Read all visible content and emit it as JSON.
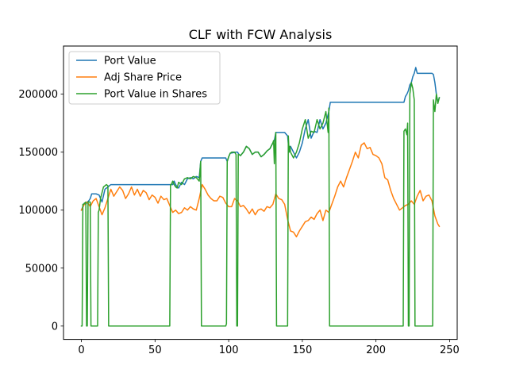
{
  "chart_data": {
    "type": "line",
    "title": "CLF with FCW Analysis",
    "xlabel": "",
    "ylabel": "",
    "xlim": [
      -12.15,
      255.15
    ],
    "ylim": [
      -11500,
      241500
    ],
    "xticks": [
      0,
      50,
      100,
      150,
      200,
      250
    ],
    "xtick_labels": [
      "0",
      "50",
      "100",
      "150",
      "200",
      "250"
    ],
    "yticks": [
      0,
      50000,
      100000,
      150000,
      200000
    ],
    "ytick_labels": [
      "0",
      "50000",
      "100000",
      "150000",
      "200000"
    ],
    "grid": false,
    "legend": {
      "placement": "upper-left"
    },
    "series": [
      {
        "name": "Port Value",
        "color": "#1f77b4",
        "x": [
          0,
          1,
          2,
          3,
          4,
          5,
          6,
          7,
          8,
          10,
          12,
          14,
          16,
          18,
          20,
          25,
          30,
          40,
          50,
          60,
          61,
          62,
          63,
          64,
          65,
          66,
          68,
          70,
          72,
          74,
          76,
          78,
          80,
          81,
          82,
          83,
          90,
          98,
          99,
          100,
          101,
          105,
          106,
          107,
          108,
          110,
          112,
          114,
          116,
          118,
          120,
          122,
          124,
          126,
          128,
          130,
          131,
          132,
          137,
          138,
          140,
          141,
          142,
          144,
          146,
          148,
          150,
          152,
          154,
          156,
          158,
          160,
          162,
          164,
          166,
          168,
          169,
          170,
          180,
          190,
          200,
          210,
          219,
          220,
          221,
          222,
          223,
          224,
          225,
          226,
          227,
          228,
          230,
          232,
          234,
          236,
          238,
          239,
          240,
          241,
          242,
          243
        ],
        "y": [
          100000,
          103000,
          106000,
          105000,
          107000,
          108000,
          110000,
          114000,
          114000,
          114000,
          113000,
          107000,
          118000,
          120000,
          122000,
          122000,
          122000,
          122000,
          122000,
          122000,
          122000,
          122000,
          125000,
          122000,
          120000,
          119000,
          124000,
          122000,
          127000,
          128000,
          127000,
          129000,
          128000,
          142000,
          145000,
          145000,
          145000,
          145000,
          142000,
          146000,
          149000,
          150000,
          150000,
          148000,
          147000,
          150000,
          155000,
          153000,
          148000,
          150000,
          150000,
          146000,
          148000,
          151000,
          153000,
          158000,
          160000,
          167000,
          167000,
          167000,
          164000,
          150000,
          155000,
          150000,
          145000,
          150000,
          158000,
          170000,
          178000,
          162000,
          168000,
          167000,
          178000,
          170000,
          175000,
          185000,
          193000,
          193000,
          193000,
          193000,
          193000,
          193000,
          193000,
          198000,
          200000,
          203000,
          208000,
          210000,
          215000,
          218000,
          223000,
          218000,
          218000,
          218000,
          218000,
          218000,
          218000,
          217000,
          210000,
          200000,
          193000,
          197000
        ]
      },
      {
        "name": "Adj Share Price",
        "color": "#ff7f0e",
        "x": [
          0,
          2,
          4,
          6,
          8,
          10,
          12,
          14,
          16,
          18,
          20,
          22,
          24,
          26,
          28,
          30,
          32,
          34,
          36,
          38,
          40,
          42,
          44,
          46,
          48,
          50,
          52,
          54,
          56,
          58,
          60,
          62,
          64,
          66,
          68,
          70,
          72,
          74,
          76,
          78,
          80,
          82,
          84,
          86,
          88,
          90,
          92,
          94,
          96,
          98,
          100,
          102,
          104,
          106,
          108,
          110,
          112,
          114,
          116,
          118,
          120,
          122,
          124,
          126,
          128,
          130,
          132,
          134,
          136,
          138,
          140,
          142,
          144,
          146,
          148,
          150,
          152,
          154,
          156,
          158,
          160,
          162,
          164,
          166,
          168,
          170,
          172,
          174,
          176,
          178,
          180,
          182,
          184,
          186,
          188,
          190,
          192,
          194,
          196,
          198,
          200,
          202,
          204,
          206,
          208,
          210,
          212,
          214,
          216,
          218,
          220,
          222,
          224,
          226,
          228,
          230,
          232,
          234,
          236,
          238,
          240,
          242,
          243
        ],
        "y": [
          100000,
          105000,
          107000,
          103000,
          108000,
          110000,
          103000,
          96000,
          102000,
          110000,
          118000,
          112000,
          116000,
          120000,
          117000,
          110000,
          114000,
          120000,
          113000,
          118000,
          112000,
          117000,
          115000,
          109000,
          113000,
          111000,
          106000,
          112000,
          109000,
          110000,
          104000,
          98000,
          100000,
          97000,
          98000,
          102000,
          100000,
          103000,
          101000,
          100000,
          110000,
          122000,
          118000,
          113000,
          110000,
          108000,
          108000,
          112000,
          111000,
          106000,
          103000,
          103000,
          110000,
          108000,
          103000,
          104000,
          101000,
          97000,
          101000,
          96000,
          100000,
          101000,
          99000,
          103000,
          102000,
          105000,
          114000,
          110000,
          109000,
          105000,
          92000,
          82000,
          81000,
          77000,
          82000,
          86000,
          90000,
          91000,
          94000,
          92000,
          97000,
          100000,
          91000,
          100000,
          98000,
          105000,
          112000,
          120000,
          125000,
          120000,
          128000,
          135000,
          142000,
          150000,
          145000,
          156000,
          158000,
          153000,
          154000,
          148000,
          147000,
          145000,
          140000,
          128000,
          126000,
          117000,
          110000,
          105000,
          100000,
          102000,
          104000,
          105000,
          108000,
          105000,
          112000,
          117000,
          108000,
          112000,
          113000,
          108000,
          95000,
          88000,
          86000
        ]
      },
      {
        "name": "Port Value in Shares",
        "color": "#2ca02c",
        "x": [
          0,
          0.5,
          1,
          1.5,
          3,
          3.5,
          4,
          4.5,
          6,
          6.5,
          7,
          8,
          10,
          11,
          11.5,
          12,
          13,
          15,
          17,
          18,
          18.5,
          19,
          30,
          40,
          50,
          60,
          60.5,
          61,
          62,
          63,
          64,
          65,
          66,
          68,
          70,
          72,
          74,
          76,
          78,
          80,
          81,
          81.5,
          82,
          83,
          90,
          97,
          98,
          98.5,
          99,
          100,
          101,
          102,
          104,
          105,
          105.5,
          106,
          106.5,
          107,
          108,
          110,
          112,
          114,
          116,
          118,
          120,
          122,
          124,
          126,
          128,
          130,
          130.5,
          131,
          131.5,
          132,
          132.5,
          133,
          137,
          138,
          140,
          140.5,
          141,
          141.5,
          142,
          144,
          146,
          148,
          150,
          152,
          154,
          156,
          158,
          160,
          162,
          164,
          166,
          167.5,
          168,
          168.5,
          169,
          170,
          180,
          190,
          200,
          210,
          218,
          218.5,
          219,
          220,
          221,
          221.5,
          222,
          222.5,
          223,
          224,
          225,
          226,
          226.5,
          227,
          230,
          235,
          238,
          238.5,
          239,
          240,
          241,
          242,
          243
        ],
        "y": [
          0,
          0,
          105000,
          105000,
          107000,
          0,
          0,
          107000,
          107000,
          0,
          0,
          0,
          0,
          0,
          98000,
          100000,
          110000,
          120000,
          122000,
          121000,
          0,
          0,
          0,
          0,
          0,
          0,
          122000,
          122000,
          125000,
          122000,
          120000,
          119000,
          124000,
          122000,
          127000,
          128000,
          127000,
          129000,
          128000,
          125000,
          142000,
          0,
          0,
          0,
          0,
          0,
          0,
          2000,
          142000,
          146000,
          149000,
          150000,
          150000,
          148000,
          0,
          0,
          148000,
          148000,
          147000,
          150000,
          155000,
          153000,
          148000,
          150000,
          150000,
          146000,
          148000,
          151000,
          153000,
          158000,
          160000,
          140000,
          160000,
          167000,
          0,
          0,
          0,
          0,
          0,
          164000,
          150000,
          155000,
          150000,
          145000,
          150000,
          158000,
          170000,
          178000,
          162000,
          168000,
          167000,
          178000,
          170000,
          175000,
          185000,
          167000,
          188000,
          0,
          0,
          0,
          0,
          0,
          0,
          0,
          0,
          0,
          168000,
          170000,
          165000,
          175000,
          0,
          0,
          200000,
          210000,
          205000,
          195000,
          0,
          0,
          0,
          0,
          0,
          0,
          195000,
          185000,
          200000,
          192000,
          197000
        ]
      }
    ]
  }
}
